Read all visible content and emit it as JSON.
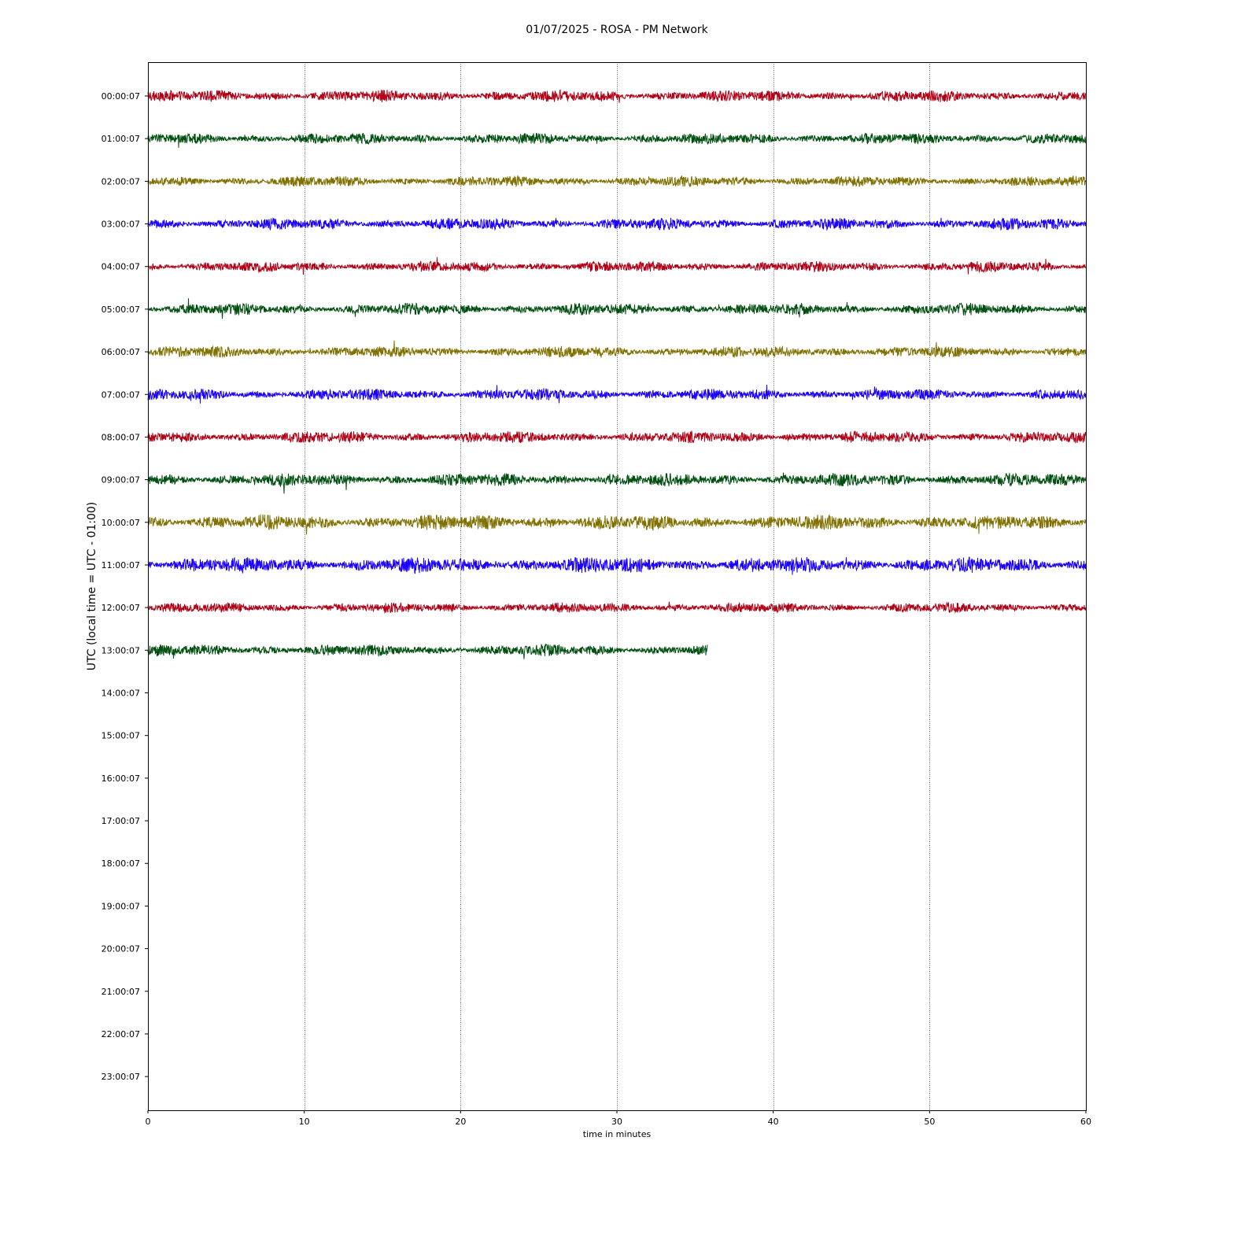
{
  "chart_data": {
    "type": "line",
    "title": "01/07/2025 - ROSA - PM Network",
    "xlabel": "time in minutes",
    "ylabel": "UTC (local time = UTC - 01:00)",
    "xlim": [
      0,
      60
    ],
    "xticks": [
      0,
      10,
      20,
      30,
      40,
      50,
      60
    ],
    "grid": "vertical dotted lines at x ticks",
    "row_labels": [
      "00:00:07",
      "01:00:07",
      "02:00:07",
      "03:00:07",
      "04:00:07",
      "05:00:07",
      "06:00:07",
      "07:00:07",
      "08:00:07",
      "09:00:07",
      "10:00:07",
      "11:00:07",
      "12:00:07",
      "13:00:07",
      "14:00:07",
      "15:00:07",
      "16:00:07",
      "17:00:07",
      "18:00:07",
      "19:00:07",
      "20:00:07",
      "21:00:07",
      "22:00:07",
      "23:00:07"
    ],
    "palette": [
      "#b00015",
      "#004f10",
      "#807000",
      "#1a00ff"
    ],
    "series": [
      {
        "row": 0,
        "color": "#b00015",
        "end": 60,
        "amp": 1.0
      },
      {
        "row": 1,
        "color": "#004f10",
        "end": 60,
        "amp": 0.95
      },
      {
        "row": 2,
        "color": "#807000",
        "end": 60,
        "amp": 0.9
      },
      {
        "row": 3,
        "color": "#1a00ff",
        "end": 60,
        "amp": 1.0
      },
      {
        "row": 4,
        "color": "#b00015",
        "end": 60,
        "amp": 0.9
      },
      {
        "row": 5,
        "color": "#004f10",
        "end": 60,
        "amp": 1.0
      },
      {
        "row": 6,
        "color": "#807000",
        "end": 60,
        "amp": 0.95
      },
      {
        "row": 7,
        "color": "#1a00ff",
        "end": 60,
        "amp": 1.0
      },
      {
        "row": 8,
        "color": "#b00015",
        "end": 60,
        "amp": 1.0
      },
      {
        "row": 9,
        "color": "#004f10",
        "end": 60,
        "amp": 1.1
      },
      {
        "row": 10,
        "color": "#807000",
        "end": 60,
        "amp": 1.3
      },
      {
        "row": 11,
        "color": "#1a00ff",
        "end": 60,
        "amp": 1.35
      },
      {
        "row": 12,
        "color": "#b00015",
        "end": 60,
        "amp": 0.85
      },
      {
        "row": 13,
        "color": "#004f10",
        "end": 35.8,
        "amp": 1.0
      }
    ]
  }
}
